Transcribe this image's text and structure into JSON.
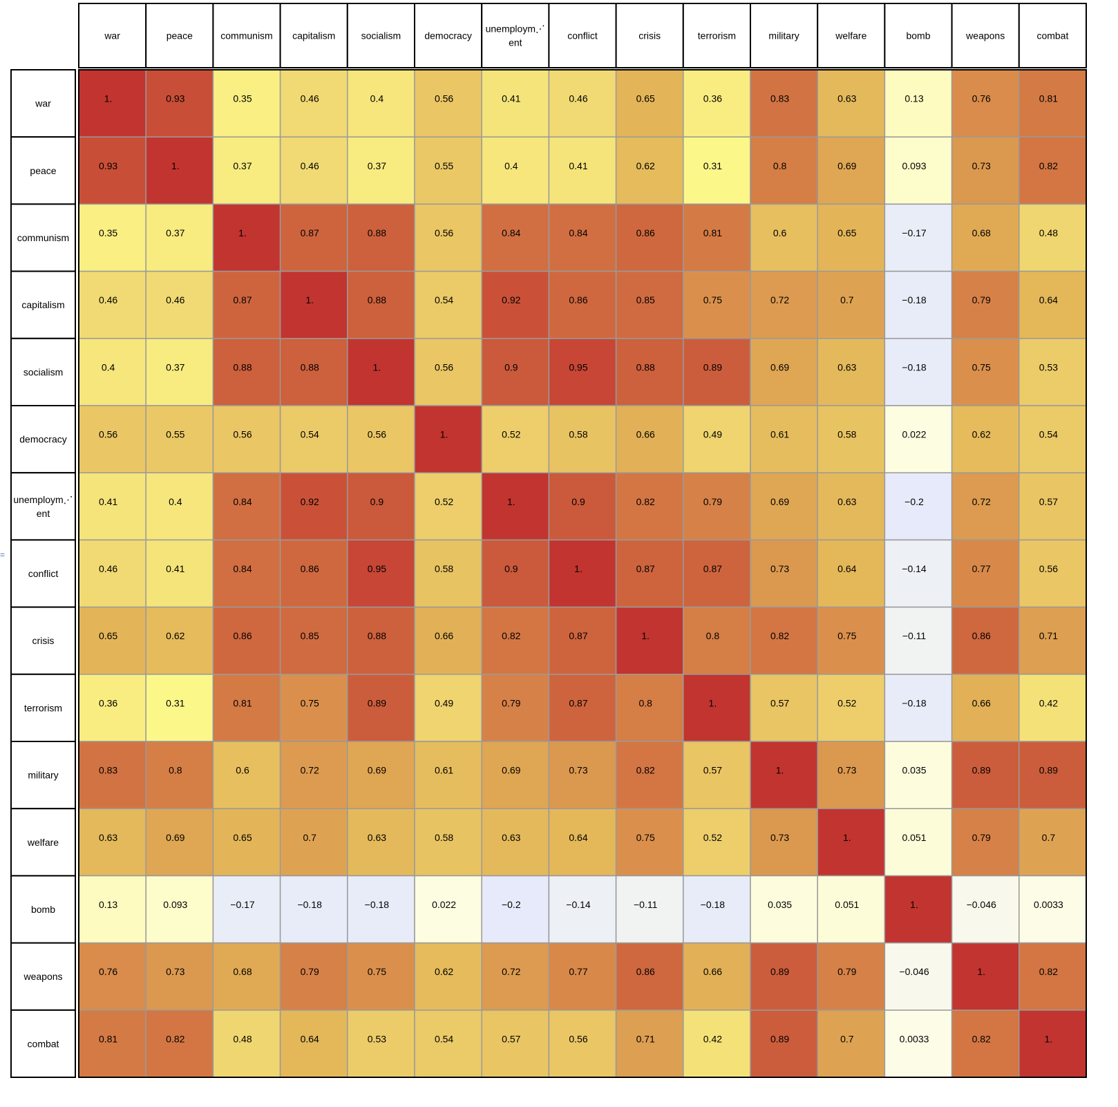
{
  "chart_data": {
    "type": "heatmap",
    "title": "",
    "xlabel": "",
    "ylabel": "",
    "columns": [
      "war",
      "peace",
      "communism",
      "capitalism",
      "socialism",
      "democracy",
      "unemploym⋰\nent",
      "conflict",
      "crisis",
      "terrorism",
      "military",
      "welfare",
      "bomb",
      "weapons",
      "combat"
    ],
    "rows": [
      "war",
      "peace",
      "communism",
      "capitalism",
      "socialism",
      "democracy",
      "unemploym⋰\nent",
      "conflict",
      "crisis",
      "terrorism",
      "military",
      "welfare",
      "bomb",
      "weapons",
      "combat"
    ],
    "labels": [
      [
        "1.",
        "0.93",
        "0.35",
        "0.46",
        "0.4",
        "0.56",
        "0.41",
        "0.46",
        "0.65",
        "0.36",
        "0.83",
        "0.63",
        "0.13",
        "0.76",
        "0.81"
      ],
      [
        "0.93",
        "1.",
        "0.37",
        "0.46",
        "0.37",
        "0.55",
        "0.4",
        "0.41",
        "0.62",
        "0.31",
        "0.8",
        "0.69",
        "0.093",
        "0.73",
        "0.82"
      ],
      [
        "0.35",
        "0.37",
        "1.",
        "0.87",
        "0.88",
        "0.56",
        "0.84",
        "0.84",
        "0.86",
        "0.81",
        "0.6",
        "0.65",
        "−0.17",
        "0.68",
        "0.48"
      ],
      [
        "0.46",
        "0.46",
        "0.87",
        "1.",
        "0.88",
        "0.54",
        "0.92",
        "0.86",
        "0.85",
        "0.75",
        "0.72",
        "0.7",
        "−0.18",
        "0.79",
        "0.64"
      ],
      [
        "0.4",
        "0.37",
        "0.88",
        "0.88",
        "1.",
        "0.56",
        "0.9",
        "0.95",
        "0.88",
        "0.89",
        "0.69",
        "0.63",
        "−0.18",
        "0.75",
        "0.53"
      ],
      [
        "0.56",
        "0.55",
        "0.56",
        "0.54",
        "0.56",
        "1.",
        "0.52",
        "0.58",
        "0.66",
        "0.49",
        "0.61",
        "0.58",
        "0.022",
        "0.62",
        "0.54"
      ],
      [
        "0.41",
        "0.4",
        "0.84",
        "0.92",
        "0.9",
        "0.52",
        "1.",
        "0.9",
        "0.82",
        "0.79",
        "0.69",
        "0.63",
        "−0.2",
        "0.72",
        "0.57"
      ],
      [
        "0.46",
        "0.41",
        "0.84",
        "0.86",
        "0.95",
        "0.58",
        "0.9",
        "1.",
        "0.87",
        "0.87",
        "0.73",
        "0.64",
        "−0.14",
        "0.77",
        "0.56"
      ],
      [
        "0.65",
        "0.62",
        "0.86",
        "0.85",
        "0.88",
        "0.66",
        "0.82",
        "0.87",
        "1.",
        "0.8",
        "0.82",
        "0.75",
        "−0.11",
        "0.86",
        "0.71"
      ],
      [
        "0.36",
        "0.31",
        "0.81",
        "0.75",
        "0.89",
        "0.49",
        "0.79",
        "0.87",
        "0.8",
        "1.",
        "0.57",
        "0.52",
        "−0.18",
        "0.66",
        "0.42"
      ],
      [
        "0.83",
        "0.8",
        "0.6",
        "0.72",
        "0.69",
        "0.61",
        "0.69",
        "0.73",
        "0.82",
        "0.57",
        "1.",
        "0.73",
        "0.035",
        "0.89",
        "0.89"
      ],
      [
        "0.63",
        "0.69",
        "0.65",
        "0.7",
        "0.63",
        "0.58",
        "0.63",
        "0.64",
        "0.75",
        "0.52",
        "0.73",
        "1.",
        "0.051",
        "0.79",
        "0.7"
      ],
      [
        "0.13",
        "0.093",
        "−0.17",
        "−0.18",
        "−0.18",
        "0.022",
        "−0.2",
        "−0.14",
        "−0.11",
        "−0.18",
        "0.035",
        "0.051",
        "1.",
        "−0.046",
        "0.0033"
      ],
      [
        "0.76",
        "0.73",
        "0.68",
        "0.79",
        "0.75",
        "0.62",
        "0.72",
        "0.77",
        "0.86",
        "0.66",
        "0.89",
        "0.79",
        "−0.046",
        "1.",
        "0.82"
      ],
      [
        "0.81",
        "0.82",
        "0.48",
        "0.64",
        "0.53",
        "0.54",
        "0.57",
        "0.56",
        "0.71",
        "0.42",
        "0.89",
        "0.7",
        "0.0033",
        "0.82",
        "1."
      ]
    ],
    "values": [
      [
        1,
        0.93,
        0.35,
        0.46,
        0.4,
        0.56,
        0.41,
        0.46,
        0.65,
        0.36,
        0.83,
        0.63,
        0.13,
        0.76,
        0.81
      ],
      [
        0.93,
        1,
        0.37,
        0.46,
        0.37,
        0.55,
        0.4,
        0.41,
        0.62,
        0.31,
        0.8,
        0.69,
        0.093,
        0.73,
        0.82
      ],
      [
        0.35,
        0.37,
        1,
        0.87,
        0.88,
        0.56,
        0.84,
        0.84,
        0.86,
        0.81,
        0.6,
        0.65,
        -0.17,
        0.68,
        0.48
      ],
      [
        0.46,
        0.46,
        0.87,
        1,
        0.88,
        0.54,
        0.92,
        0.86,
        0.85,
        0.75,
        0.72,
        0.7,
        -0.18,
        0.79,
        0.64
      ],
      [
        0.4,
        0.37,
        0.88,
        0.88,
        1,
        0.56,
        0.9,
        0.95,
        0.88,
        0.89,
        0.69,
        0.63,
        -0.18,
        0.75,
        0.53
      ],
      [
        0.56,
        0.55,
        0.56,
        0.54,
        0.56,
        1,
        0.52,
        0.58,
        0.66,
        0.49,
        0.61,
        0.58,
        0.022,
        0.62,
        0.54
      ],
      [
        0.41,
        0.4,
        0.84,
        0.92,
        0.9,
        0.52,
        1,
        0.9,
        0.82,
        0.79,
        0.69,
        0.63,
        -0.2,
        0.72,
        0.57
      ],
      [
        0.46,
        0.41,
        0.84,
        0.86,
        0.95,
        0.58,
        0.9,
        1,
        0.87,
        0.87,
        0.73,
        0.64,
        -0.14,
        0.77,
        0.56
      ],
      [
        0.65,
        0.62,
        0.86,
        0.85,
        0.88,
        0.66,
        0.82,
        0.87,
        1,
        0.8,
        0.82,
        0.75,
        -0.11,
        0.86,
        0.71
      ],
      [
        0.36,
        0.31,
        0.81,
        0.75,
        0.89,
        0.49,
        0.79,
        0.87,
        0.8,
        1,
        0.57,
        0.52,
        -0.18,
        0.66,
        0.42
      ],
      [
        0.83,
        0.8,
        0.6,
        0.72,
        0.69,
        0.61,
        0.69,
        0.73,
        0.82,
        0.57,
        1,
        0.73,
        0.035,
        0.89,
        0.89
      ],
      [
        0.63,
        0.69,
        0.65,
        0.7,
        0.63,
        0.58,
        0.63,
        0.64,
        0.75,
        0.52,
        0.73,
        1,
        0.051,
        0.79,
        0.7
      ],
      [
        0.13,
        0.093,
        -0.17,
        -0.18,
        -0.18,
        0.022,
        -0.2,
        -0.14,
        -0.11,
        -0.18,
        0.035,
        0.051,
        1,
        -0.046,
        0.0033
      ],
      [
        0.76,
        0.73,
        0.68,
        0.79,
        0.75,
        0.62,
        0.72,
        0.77,
        0.86,
        0.66,
        0.89,
        0.79,
        -0.046,
        1,
        0.82
      ],
      [
        0.81,
        0.82,
        0.48,
        0.64,
        0.53,
        0.54,
        0.57,
        0.56,
        0.71,
        0.42,
        0.89,
        0.7,
        0.0033,
        0.82,
        1
      ]
    ],
    "color_scale": {
      "negative": "#e6eafa",
      "zero": "#fdfde8",
      "low": "#fdf98a",
      "mid": "#e3b558",
      "high": "#c2342f"
    },
    "legend": "none",
    "grid": true
  }
}
